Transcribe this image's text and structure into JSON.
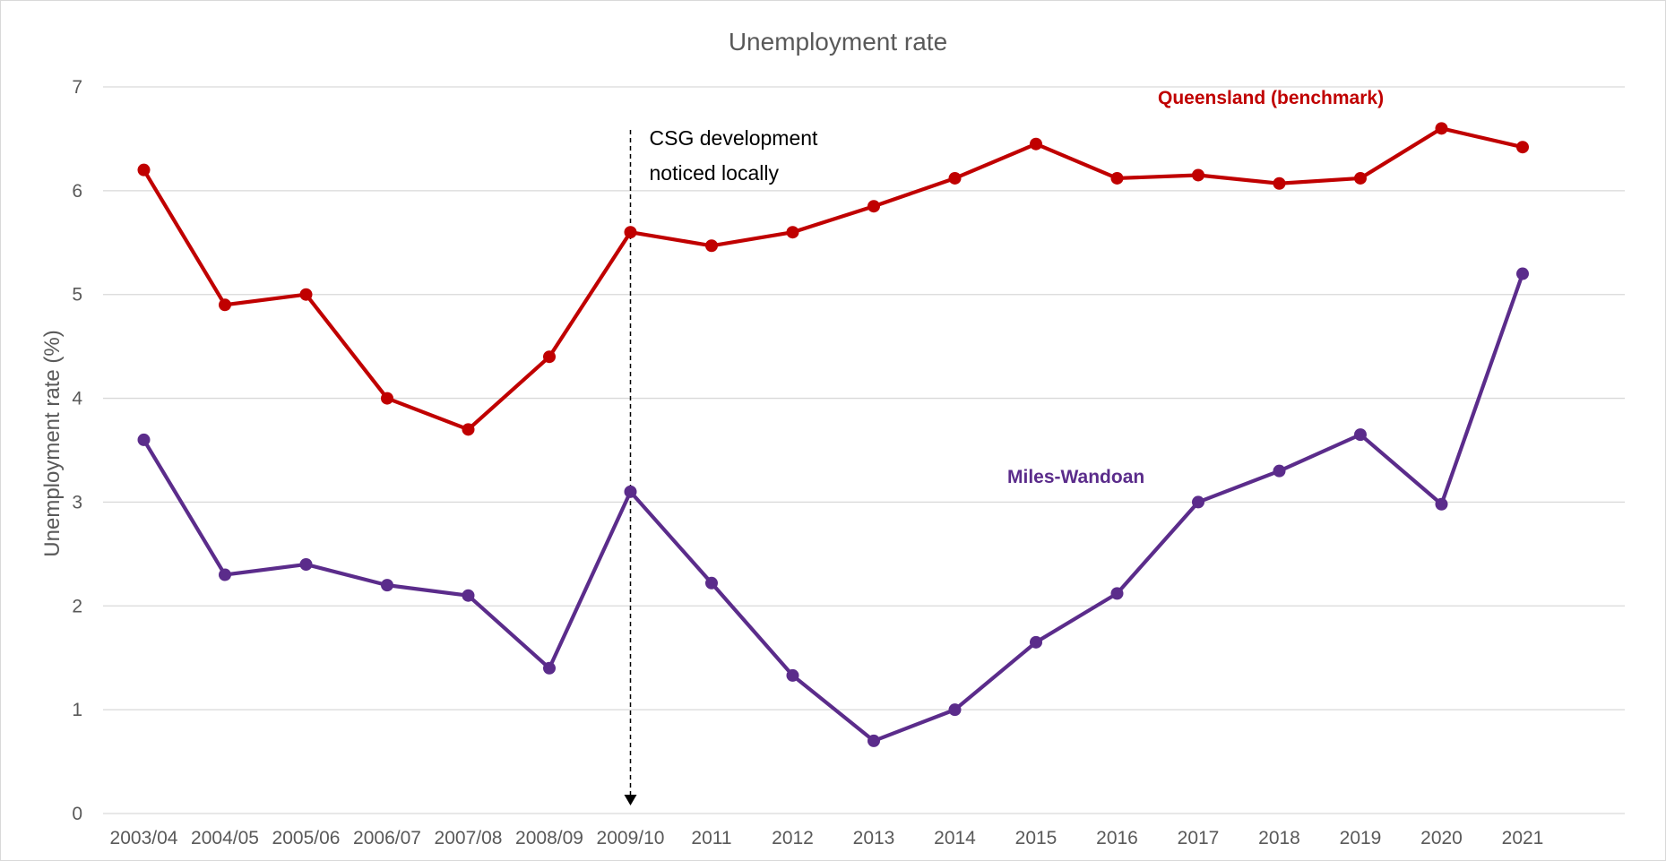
{
  "chart_data": {
    "type": "line",
    "title": "Unemployment rate",
    "xlabel": "",
    "ylabel": "Unemployment rate (%)",
    "ylim": [
      0,
      7
    ],
    "yticks": [
      "0",
      "1",
      "2",
      "3",
      "4",
      "5",
      "6",
      "7"
    ],
    "grid": true,
    "categories": [
      "2003/04",
      "2004/05",
      "2005/06",
      "2006/07",
      "2007/08",
      "2008/09",
      "2009/10",
      "2011",
      "2012",
      "2013",
      "2014",
      "2015",
      "2016",
      "2017",
      "2018",
      "2019",
      "2020",
      "2021"
    ],
    "series": [
      {
        "name": "Queensland (benchmark)",
        "color": "#c00000",
        "values": [
          6.2,
          4.9,
          5.0,
          4.0,
          3.7,
          4.4,
          5.6,
          5.47,
          5.6,
          5.85,
          6.12,
          6.45,
          6.12,
          6.15,
          6.07,
          6.12,
          6.6,
          6.42
        ]
      },
      {
        "name": "Miles-Wandoan",
        "color": "#5b2c8b",
        "values": [
          3.6,
          2.3,
          2.4,
          2.2,
          2.1,
          1.4,
          3.1,
          2.22,
          1.33,
          0.7,
          1.0,
          1.65,
          2.12,
          3.0,
          3.3,
          3.65,
          2.98,
          5.2
        ]
      }
    ],
    "annotation": {
      "text_line1": "CSG development",
      "text_line2": "noticed locally",
      "at_category": "2009/10"
    }
  }
}
